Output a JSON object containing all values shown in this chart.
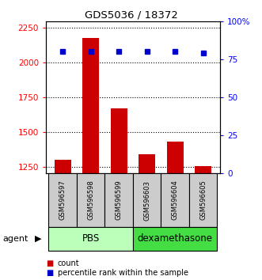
{
  "title": "GDS5036 / 18372",
  "samples": [
    "GSM596597",
    "GSM596598",
    "GSM596599",
    "GSM596603",
    "GSM596604",
    "GSM596605"
  ],
  "counts": [
    1300,
    2175,
    1670,
    1340,
    1430,
    1255
  ],
  "percentile_ranks": [
    80,
    80,
    80,
    80,
    80,
    79
  ],
  "groups": [
    "PBS",
    "PBS",
    "PBS",
    "dexamethasone",
    "dexamethasone",
    "dexamethasone"
  ],
  "bar_color": "#cc0000",
  "dot_color": "#0000cc",
  "ylim_left": [
    1200,
    2300
  ],
  "ylim_right": [
    0,
    100
  ],
  "yticks_left": [
    1250,
    1500,
    1750,
    2000,
    2250
  ],
  "yticks_right": [
    0,
    25,
    50,
    75,
    100
  ],
  "yticklabels_right": [
    "0",
    "25",
    "50",
    "75",
    "100%"
  ],
  "pbs_color": "#bbffbb",
  "dex_color": "#44dd44",
  "gray_color": "#cccccc",
  "legend_count_label": "count",
  "legend_percentile_label": "percentile rank within the sample"
}
